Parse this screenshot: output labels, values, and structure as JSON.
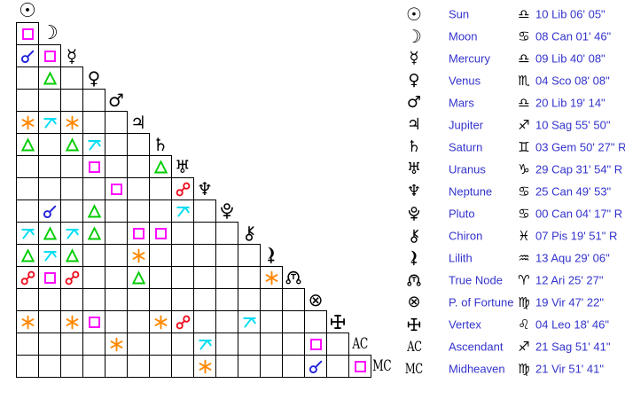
{
  "colors": {
    "background": "#ffffff",
    "grid_line": "#000000",
    "glyph_black": "#000000",
    "legend_text_blue": "#3333cc",
    "aspects": {
      "cj": "#2222dd",
      "sx": "#ff8800",
      "sq": "#ff00ff",
      "tr": "#00cc00",
      "op": "#ee1122",
      "qx": "#00ddf2"
    }
  },
  "chart_data": {
    "type": "table",
    "description": "Astrological aspectarian: triangular aspect grid (lower-left) plus planet position legend (right)",
    "aspect_types": {
      "cj": "conjunction",
      "sx": "sextile",
      "sq": "square",
      "tr": "trine",
      "op": "opposition",
      "qx": "quincunx"
    },
    "planets": [
      {
        "name": "Sun",
        "icon": "sun",
        "sign": "Libra",
        "sign_icon": "libra",
        "position": "10 Lib 06' 05\"",
        "grid_label": ""
      },
      {
        "name": "Moon",
        "icon": "moon",
        "sign": "Cancer",
        "sign_icon": "cancer",
        "position": "08 Can 01' 46\"",
        "grid_label": ""
      },
      {
        "name": "Mercury",
        "icon": "mercury",
        "sign": "Libra",
        "sign_icon": "libra",
        "position": "09 Lib 40' 08\"",
        "grid_label": ""
      },
      {
        "name": "Venus",
        "icon": "venus",
        "sign": "Scorpio",
        "sign_icon": "scorpio",
        "position": "04 Sco 08' 08\"",
        "grid_label": ""
      },
      {
        "name": "Mars",
        "icon": "mars",
        "sign": "Libra",
        "sign_icon": "libra",
        "position": "20 Lib 19' 14\"",
        "grid_label": ""
      },
      {
        "name": "Jupiter",
        "icon": "jupiter",
        "sign": "Sagittarius",
        "sign_icon": "sagittarius",
        "position": "10 Sag 55' 50\"",
        "grid_label": ""
      },
      {
        "name": "Saturn",
        "icon": "saturn",
        "sign": "Gemini",
        "sign_icon": "gemini",
        "position": "03 Gem 50' 27\" R",
        "grid_label": ""
      },
      {
        "name": "Uranus",
        "icon": "uranus",
        "sign": "Capricorn",
        "sign_icon": "capricorn",
        "position": "29 Cap 31' 54\" R",
        "grid_label": ""
      },
      {
        "name": "Neptune",
        "icon": "neptune",
        "sign": "Cancer",
        "sign_icon": "cancer",
        "position": "25 Can 49' 53\"",
        "grid_label": ""
      },
      {
        "name": "Pluto",
        "icon": "pluto",
        "sign": "Cancer",
        "sign_icon": "cancer",
        "position": "00 Can 04' 17\" R",
        "grid_label": ""
      },
      {
        "name": "Chiron",
        "icon": "chiron",
        "sign": "Pisces",
        "sign_icon": "pisces",
        "position": "07 Pis 19' 51\" R",
        "grid_label": ""
      },
      {
        "name": "Lilith",
        "icon": "lilith",
        "sign": "Aquarius",
        "sign_icon": "aquarius",
        "position": "13 Aqu 29' 06\"",
        "grid_label": ""
      },
      {
        "name": "True Node",
        "icon": "true-node",
        "sign": "Aries",
        "sign_icon": "aries",
        "position": "12 Ari 25' 27\"",
        "grid_label": ""
      },
      {
        "name": "P. of Fortune",
        "icon": "fortune",
        "sign": "Virgo",
        "sign_icon": "virgo",
        "position": "19 Vir 47' 22\"",
        "grid_label": ""
      },
      {
        "name": "Vertex",
        "icon": "vertex",
        "sign": "Leo",
        "sign_icon": "leo",
        "position": "04 Leo 18' 46\"",
        "grid_label": ""
      },
      {
        "name": "Ascendant",
        "icon": "ascendant",
        "sign": "Sagittarius",
        "sign_icon": "sagittarius",
        "position": "21 Sag 51' 41\"",
        "grid_label": "AC"
      },
      {
        "name": "Midheaven",
        "icon": "midheaven",
        "sign": "Virgo",
        "sign_icon": "virgo",
        "position": "21 Vir 51' 41\"",
        "grid_label": "MC"
      }
    ],
    "aspect_matrix": {
      "note": "row N = planet N+1 (Moon..Midheaven); cells aspect columns Sun..previous planet; empty string = no aspect",
      "rows": [
        [
          "sq"
        ],
        [
          "cj",
          "sq"
        ],
        [
          "",
          "tr",
          ""
        ],
        [
          "",
          "",
          "",
          ""
        ],
        [
          "sx",
          "qx",
          "sx",
          "",
          ""
        ],
        [
          "tr",
          "",
          "tr",
          "qx",
          "",
          ""
        ],
        [
          "",
          "",
          "",
          "sq",
          "",
          "",
          "tr"
        ],
        [
          "",
          "",
          "",
          "",
          "sq",
          "",
          "",
          "op"
        ],
        [
          "",
          "cj",
          "",
          "tr",
          "",
          "",
          "",
          "qx",
          ""
        ],
        [
          "qx",
          "tr",
          "qx",
          "tr",
          "",
          "sq",
          "sq",
          "",
          "",
          ""
        ],
        [
          "tr",
          "qx",
          "tr",
          "",
          "",
          "sx",
          "",
          "",
          "",
          "",
          ""
        ],
        [
          "op",
          "sq",
          "op",
          "",
          "",
          "tr",
          "",
          "",
          "",
          "",
          "",
          "sx"
        ],
        [
          "",
          "",
          "",
          "",
          "",
          "",
          "",
          "",
          "",
          "",
          "",
          "",
          ""
        ],
        [
          "sx",
          "",
          "sx",
          "sq",
          "",
          "",
          "sx",
          "op",
          "",
          "",
          "qx",
          "",
          "",
          ""
        ],
        [
          "",
          "",
          "",
          "",
          "sx",
          "",
          "",
          "",
          "qx",
          "",
          "",
          "",
          "",
          "sq",
          ""
        ],
        [
          "",
          "",
          "",
          "",
          "",
          "",
          "",
          "",
          "sx",
          "",
          "",
          "",
          "",
          "cj",
          "",
          "sq"
        ]
      ]
    }
  }
}
